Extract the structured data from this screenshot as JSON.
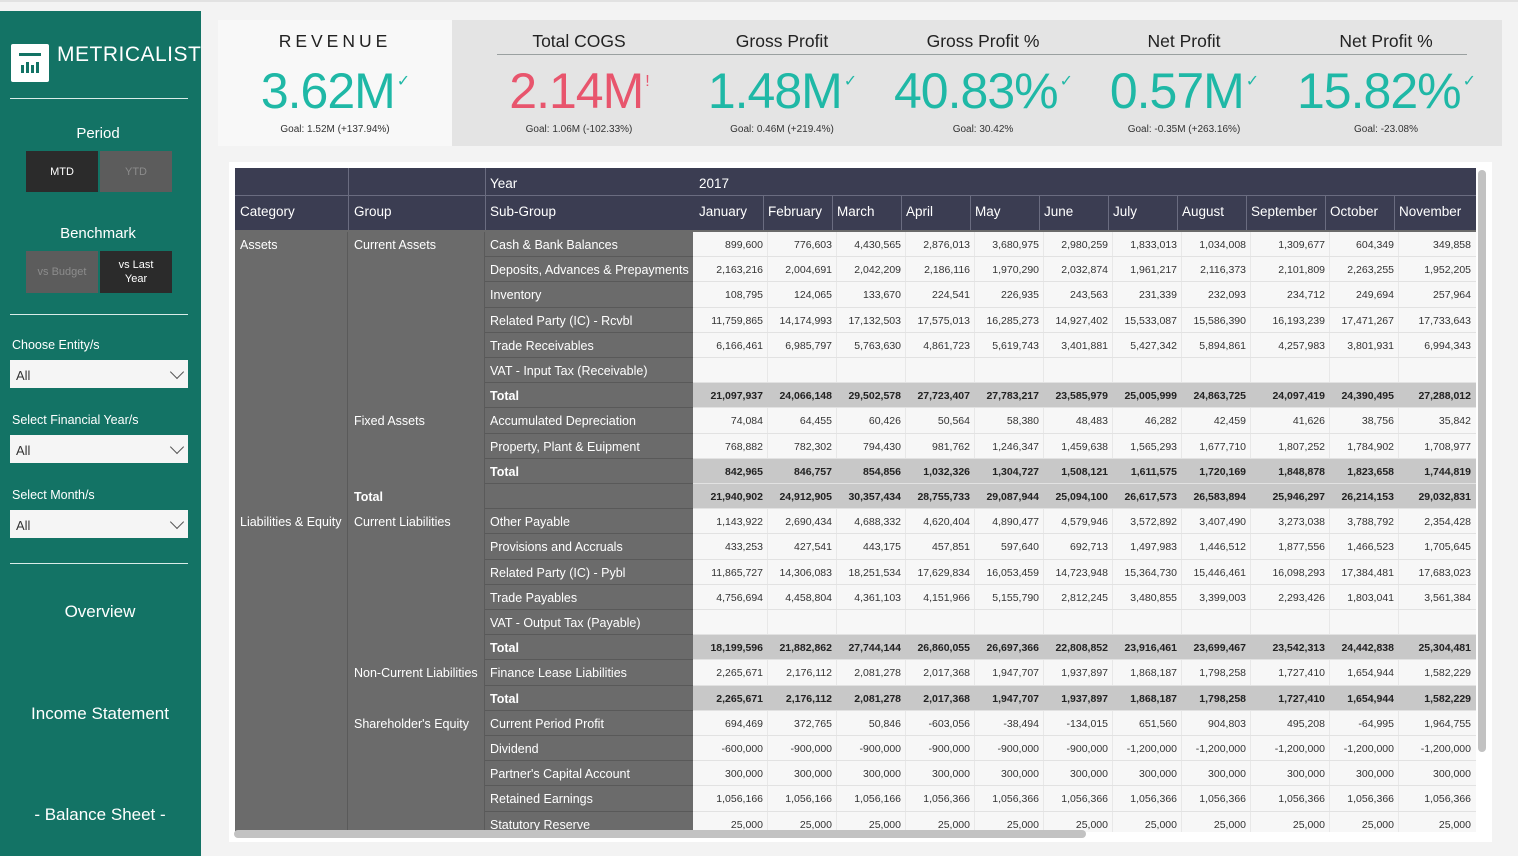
{
  "sidebar": {
    "brand": "METRICALIST",
    "period_label": "Period",
    "period_mtd": "MTD",
    "period_ytd": "YTD",
    "benchmark_label": "Benchmark",
    "bench_budget": "vs Budget",
    "bench_last_year": "vs Last Year",
    "entity_label": "Choose Entity/s",
    "entity_value": "All",
    "year_label": "Select Financial Year/s",
    "year_value": "All",
    "month_label": "Select Month/s",
    "month_value": "All",
    "nav_overview": "Overview",
    "nav_income": "Income Statement",
    "nav_balance": "- Balance Sheet -"
  },
  "colors": {
    "sidebar": "#137365",
    "positive": "#1fb8a6",
    "negative": "#e8556d",
    "header": "#3b3d52"
  },
  "kpis": [
    {
      "title": "REVENUE",
      "value": "3.62M",
      "indicator": "✓",
      "goal": "Goal: 1.52M (+137.94%)",
      "status": "positive"
    },
    {
      "title": "Total COGS",
      "value": "2.14M",
      "indicator": "!",
      "goal": "Goal: 1.06M (-102.33%)",
      "status": "negative"
    },
    {
      "title": "Gross Profit",
      "value": "1.48M",
      "indicator": "✓",
      "goal": "Goal: 0.46M (+219.4%)",
      "status": "positive"
    },
    {
      "title": "Gross Profit %",
      "value": "40.83%",
      "indicator": "✓",
      "goal": "Goal: 30.42%",
      "status": "positive"
    },
    {
      "title": "Net Profit",
      "value": "0.57M",
      "indicator": "✓",
      "goal": "Goal: -0.35M (+263.16%)",
      "status": "positive"
    },
    {
      "title": "Net Profit %",
      "value": "15.82%",
      "indicator": "✓",
      "goal": "Goal: -23.08%",
      "status": "positive"
    }
  ],
  "matrix": {
    "year_label": "Year",
    "year_value": "2017",
    "col_category": "Category",
    "col_group": "Group",
    "col_subgroup": "Sub-Group",
    "months": [
      "January",
      "February",
      "March",
      "April",
      "May",
      "June",
      "July",
      "August",
      "September",
      "October",
      "November"
    ],
    "categories": [
      {
        "label": "Assets",
        "row": 0
      },
      {
        "label": "Liabilities & Equity",
        "row": 11
      }
    ],
    "groups": [
      {
        "label": "Current Assets",
        "row": 0
      },
      {
        "label": "Fixed Assets",
        "row": 7
      },
      {
        "label": "Total",
        "row": 10,
        "bold": true
      },
      {
        "label": "Current Liabilities",
        "row": 11
      },
      {
        "label": "Non-Current Liabilities",
        "row": 17
      },
      {
        "label": "Shareholder's Equity",
        "row": 19
      }
    ],
    "rows": [
      {
        "sub": "Cash & Bank Balances",
        "values": [
          "899,600",
          "776,603",
          "4,430,565",
          "2,876,013",
          "3,680,975",
          "2,980,259",
          "1,833,013",
          "1,034,008",
          "1,309,677",
          "604,349",
          "349,858"
        ]
      },
      {
        "sub": "Deposits, Advances & Prepayments",
        "values": [
          "2,163,216",
          "2,004,691",
          "2,042,209",
          "2,186,116",
          "1,970,290",
          "2,032,874",
          "1,961,217",
          "2,116,373",
          "2,101,809",
          "2,263,255",
          "1,952,205"
        ]
      },
      {
        "sub": "Inventory",
        "values": [
          "108,795",
          "124,065",
          "133,670",
          "224,541",
          "226,935",
          "243,563",
          "231,339",
          "232,093",
          "234,712",
          "249,694",
          "257,964"
        ]
      },
      {
        "sub": "Related Party (IC) - Rcvbl",
        "values": [
          "11,759,865",
          "14,174,993",
          "17,132,503",
          "17,575,013",
          "16,285,273",
          "14,927,402",
          "15,533,087",
          "15,586,390",
          "16,193,239",
          "17,471,267",
          "17,733,643"
        ]
      },
      {
        "sub": "Trade Receivables",
        "values": [
          "6,166,461",
          "6,985,797",
          "5,763,630",
          "4,861,723",
          "5,619,743",
          "3,401,881",
          "5,427,342",
          "5,894,861",
          "4,257,983",
          "3,801,931",
          "6,994,343"
        ]
      },
      {
        "sub": "VAT - Input Tax (Receivable)",
        "values": [
          "",
          "",
          "",
          "",
          "",
          "",
          "",
          "",
          "",
          "",
          ""
        ]
      },
      {
        "sub": "Total",
        "total": true,
        "values": [
          "21,097,937",
          "24,066,148",
          "29,502,578",
          "27,723,407",
          "27,783,217",
          "23,585,979",
          "25,005,999",
          "24,863,725",
          "24,097,419",
          "24,390,495",
          "27,288,012"
        ]
      },
      {
        "sub": "Accumulated Depreciation",
        "values": [
          "74,084",
          "64,455",
          "60,426",
          "50,564",
          "58,380",
          "48,483",
          "46,282",
          "42,459",
          "41,626",
          "38,756",
          "35,842"
        ]
      },
      {
        "sub": "Property, Plant & Euipment",
        "values": [
          "768,882",
          "782,302",
          "794,430",
          "981,762",
          "1,246,347",
          "1,459,638",
          "1,565,293",
          "1,677,710",
          "1,807,252",
          "1,784,902",
          "1,708,977"
        ]
      },
      {
        "sub": "Total",
        "total": true,
        "values": [
          "842,965",
          "846,757",
          "854,856",
          "1,032,326",
          "1,304,727",
          "1,508,121",
          "1,611,575",
          "1,720,169",
          "1,848,878",
          "1,823,658",
          "1,744,819"
        ]
      },
      {
        "sub": "",
        "total": true,
        "values": [
          "21,940,902",
          "24,912,905",
          "30,357,434",
          "28,755,733",
          "29,087,944",
          "25,094,100",
          "26,617,573",
          "26,583,894",
          "25,946,297",
          "26,214,153",
          "29,032,831"
        ]
      },
      {
        "sub": "Other Payable",
        "values": [
          "1,143,922",
          "2,690,434",
          "4,688,332",
          "4,620,404",
          "4,890,477",
          "4,579,946",
          "3,572,892",
          "3,407,490",
          "3,273,038",
          "3,788,792",
          "2,354,428"
        ]
      },
      {
        "sub": "Provisions and Accruals",
        "values": [
          "433,253",
          "427,541",
          "443,175",
          "457,851",
          "597,640",
          "692,713",
          "1,497,983",
          "1,446,512",
          "1,877,556",
          "1,466,523",
          "1,705,645"
        ]
      },
      {
        "sub": "Related Party (IC) - Pybl",
        "values": [
          "11,865,727",
          "14,306,083",
          "18,251,534",
          "17,629,834",
          "16,053,459",
          "14,723,948",
          "15,364,730",
          "15,446,461",
          "16,098,293",
          "17,384,481",
          "17,683,023"
        ]
      },
      {
        "sub": "Trade Payables",
        "values": [
          "4,756,694",
          "4,458,804",
          "4,361,103",
          "4,151,966",
          "5,155,790",
          "2,812,245",
          "3,480,855",
          "3,399,003",
          "2,293,426",
          "1,803,041",
          "3,561,384"
        ]
      },
      {
        "sub": "VAT - Output Tax (Payable)",
        "values": [
          "",
          "",
          "",
          "",
          "",
          "",
          "",
          "",
          "",
          "",
          ""
        ]
      },
      {
        "sub": "Total",
        "total": true,
        "values": [
          "18,199,596",
          "21,882,862",
          "27,744,144",
          "26,860,055",
          "26,697,366",
          "22,808,852",
          "23,916,461",
          "23,699,467",
          "23,542,313",
          "24,442,838",
          "25,304,481"
        ]
      },
      {
        "sub": "Finance Lease Liabilities",
        "values": [
          "2,265,671",
          "2,176,112",
          "2,081,278",
          "2,017,368",
          "1,947,707",
          "1,937,897",
          "1,868,187",
          "1,798,258",
          "1,727,410",
          "1,654,944",
          "1,582,229"
        ]
      },
      {
        "sub": "Total",
        "total": true,
        "values": [
          "2,265,671",
          "2,176,112",
          "2,081,278",
          "2,017,368",
          "1,947,707",
          "1,937,897",
          "1,868,187",
          "1,798,258",
          "1,727,410",
          "1,654,944",
          "1,582,229"
        ]
      },
      {
        "sub": "Current Period Profit",
        "values": [
          "694,469",
          "372,765",
          "50,846",
          "-603,056",
          "-38,494",
          "-134,015",
          "651,560",
          "904,803",
          "495,208",
          "-64,995",
          "1,964,755"
        ]
      },
      {
        "sub": "Dividend",
        "values": [
          "-600,000",
          "-900,000",
          "-900,000",
          "-900,000",
          "-900,000",
          "-900,000",
          "-1,200,000",
          "-1,200,000",
          "-1,200,000",
          "-1,200,000",
          "-1,200,000"
        ]
      },
      {
        "sub": "Partner's Capital Account",
        "values": [
          "300,000",
          "300,000",
          "300,000",
          "300,000",
          "300,000",
          "300,000",
          "300,000",
          "300,000",
          "300,000",
          "300,000",
          "300,000"
        ]
      },
      {
        "sub": "Retained Earnings",
        "values": [
          "1,056,166",
          "1,056,166",
          "1,056,166",
          "1,056,366",
          "1,056,366",
          "1,056,366",
          "1,056,366",
          "1,056,366",
          "1,056,366",
          "1,056,366",
          "1,056,366"
        ]
      },
      {
        "sub": "Statutory Reserve",
        "values": [
          "25,000",
          "25,000",
          "25,000",
          "25,000",
          "25,000",
          "25,000",
          "25,000",
          "25,000",
          "25,000",
          "25,000",
          "25,000"
        ]
      }
    ]
  }
}
